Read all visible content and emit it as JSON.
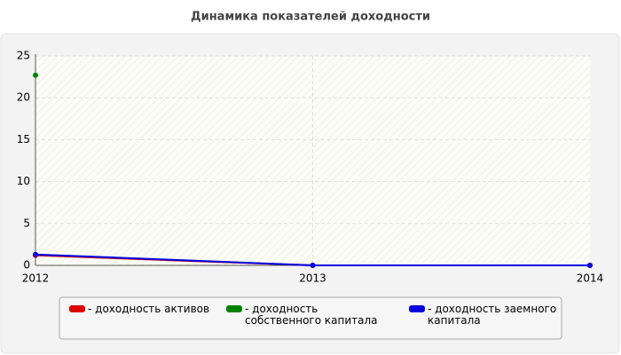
{
  "chart_data": {
    "type": "line",
    "title": "Динамика показателей доходности",
    "categories": [
      "2012",
      "2013",
      "2014"
    ],
    "series": [
      {
        "name": "- доходность активов",
        "color": "#e00000",
        "values": [
          1.2,
          0,
          0
        ]
      },
      {
        "name": "- доходность собственного капитала",
        "color": "#008000",
        "values": [
          22.7,
          null,
          null
        ]
      },
      {
        "name": "- доходность заемного капитала",
        "color": "#0000e0",
        "values": [
          1.3,
          0,
          0
        ]
      }
    ],
    "ylim": [
      0,
      25
    ],
    "yticks": [
      0,
      5,
      10,
      15,
      20,
      25
    ],
    "grid": true,
    "legend": "bottom"
  }
}
